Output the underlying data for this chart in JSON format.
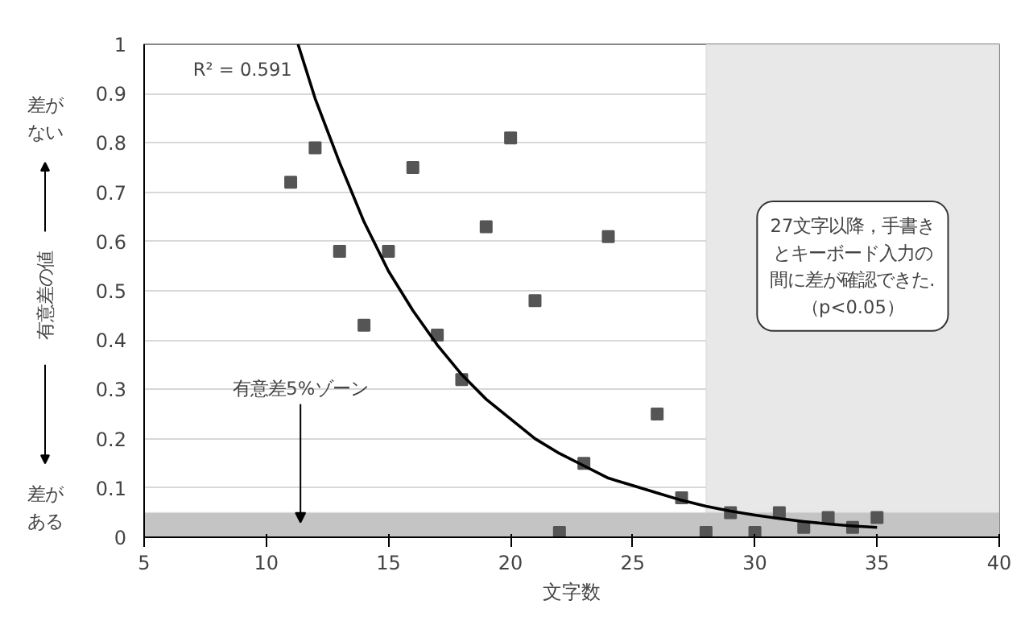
{
  "chart_data": {
    "type": "scatter",
    "xlabel": "文字数",
    "ylabel": "有意差の値",
    "xlim": [
      5,
      40
    ],
    "ylim": [
      0,
      1
    ],
    "xticks": [
      5,
      10,
      15,
      20,
      25,
      30,
      35,
      40
    ],
    "yticks": [
      0,
      0.1,
      0.2,
      0.3,
      0.4,
      0.5,
      0.6,
      0.7,
      0.8,
      0.9,
      1
    ],
    "grid": "y",
    "marker": "square",
    "series": [
      {
        "color": "#555555",
        "x": [
          11,
          12,
          13,
          14,
          15,
          16,
          17,
          18,
          19,
          20,
          21,
          22,
          23,
          24,
          26,
          27,
          28,
          29,
          30,
          31,
          32,
          33,
          34,
          35
        ],
        "values": [
          0.72,
          0.79,
          0.58,
          0.43,
          0.58,
          0.75,
          0.41,
          0.32,
          0.63,
          0.81,
          0.48,
          0.01,
          0.15,
          0.61,
          0.25,
          0.08,
          0.01,
          0.05,
          0.01,
          0.05,
          0.02,
          0.04,
          0.02,
          0.04
        ]
      },
      {
        "type": "line",
        "color": "#000000",
        "line_style": "solid",
        "marker": "none",
        "x": [
          11.3,
          12,
          13,
          14,
          15,
          16,
          17,
          18,
          19,
          20,
          21,
          22,
          23,
          24,
          25,
          26,
          27,
          28,
          29,
          30,
          31,
          32,
          33,
          34,
          35
        ],
        "values": [
          1.0,
          0.89,
          0.76,
          0.64,
          0.54,
          0.46,
          0.39,
          0.33,
          0.28,
          0.24,
          0.2,
          0.17,
          0.145,
          0.12,
          0.105,
          0.09,
          0.075,
          0.063,
          0.053,
          0.045,
          0.038,
          0.032,
          0.027,
          0.023,
          0.02
        ]
      }
    ],
    "bands": [
      {
        "axis": "x",
        "from": 28,
        "to": 40,
        "color": "#e8e8e8"
      },
      {
        "axis": "y",
        "from": 0,
        "to": 0.05,
        "color": "#c4c4c4"
      }
    ],
    "annotations": [
      "R² = 0.591",
      "有意差5%ゾーン",
      "27文字以降，手書きとキーボード入力の間に差が確認できた.（p<0.05）",
      "差がない",
      "差がある"
    ]
  }
}
